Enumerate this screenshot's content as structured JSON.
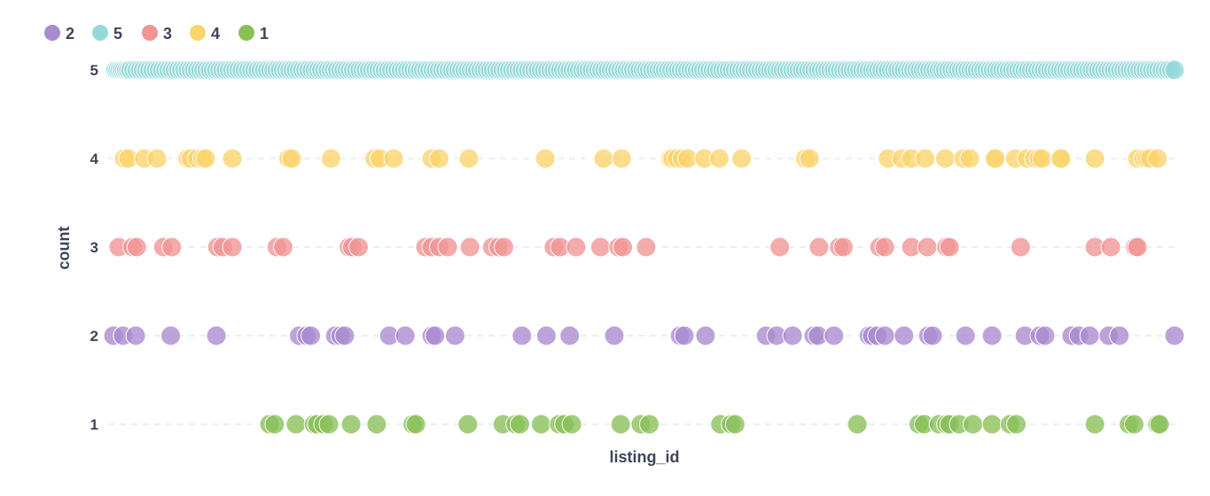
{
  "chart_data": {
    "type": "scatter",
    "xlabel": "listing_id",
    "ylabel": "count",
    "xlim": [
      0,
      1000
    ],
    "ylim": [
      0.5,
      5.5
    ],
    "yticks": [
      1,
      2,
      3,
      4,
      5
    ],
    "grid": "horizontal dashed",
    "legend": "top-left",
    "series": [
      {
        "name": "2",
        "color": "#a98bd0",
        "y": 2,
        "x": [
          0,
          9,
          21,
          54,
          97,
          175,
          182,
          186,
          209,
          214,
          218,
          260,
          275,
          300,
          303,
          322,
          385,
          408,
          430,
          472,
          534,
          538,
          558,
          615,
          625,
          640,
          660,
          664,
          679,
          712,
          715,
          720,
          727,
          745,
          768,
          772,
          803,
          828,
          859,
          873,
          878,
          903,
          910,
          920,
          938,
          948,
          1000
        ]
      },
      {
        "name": "3",
        "color": "#f19494",
        "y": 3,
        "x": [
          5,
          18,
          22,
          47,
          55,
          98,
          103,
          112,
          154,
          160,
          222,
          225,
          231,
          294,
          300,
          307,
          315,
          336,
          357,
          363,
          368,
          415,
          421,
          436,
          459,
          476,
          480,
          502,
          628,
          665,
          684,
          688,
          722,
          727,
          752,
          767,
          785,
          788,
          855,
          925,
          940,
          963,
          965
        ]
      },
      {
        "name": "4",
        "color": "#fbd46b",
        "y": 4,
        "x": [
          10,
          14,
          29,
          41,
          70,
          73,
          79,
          84,
          87,
          112,
          165,
          168,
          205,
          246,
          251,
          264,
          300,
          307,
          335,
          407,
          462,
          479,
          525,
          527,
          531,
          536,
          541,
          557,
          571,
          592,
          652,
          656,
          730,
          743,
          752,
          765,
          784,
          801,
          807,
          830,
          831,
          850,
          861,
          868,
          872,
          875,
          892,
          893,
          925,
          965,
          971,
          974,
          977,
          984
        ]
      },
      {
        "name": "1",
        "color": "#88c057",
        "y": 1,
        "x": [
          147,
          152,
          172,
          189,
          192,
          198,
          203,
          224,
          248,
          282,
          285,
          334,
          367,
          379,
          383,
          403,
          420,
          425,
          432,
          478,
          497,
          505,
          572,
          582,
          586,
          701,
          759,
          764,
          778,
          785,
          788,
          797,
          810,
          828,
          845,
          851,
          925,
          957,
          962,
          984,
          986
        ]
      },
      {
        "name": "5",
        "color": "#95dadb",
        "y": 5,
        "x": [
          2,
          4,
          6,
          8,
          10,
          12,
          14,
          16,
          19,
          22,
          25,
          28,
          31,
          34,
          37,
          40,
          43,
          46,
          49,
          52,
          55,
          58,
          61,
          64,
          67,
          70,
          73,
          76,
          79,
          82,
          85,
          88,
          91,
          94,
          97,
          100,
          103,
          106,
          109,
          112,
          115,
          118,
          121,
          124,
          127,
          130,
          133,
          136,
          139,
          142,
          145,
          148,
          151,
          154,
          157,
          160,
          163,
          166,
          169,
          172,
          175,
          178,
          181,
          184,
          187,
          190,
          193,
          196,
          199,
          202,
          205,
          208,
          211,
          214,
          217,
          220,
          223,
          226,
          229,
          232,
          235,
          238,
          241,
          244,
          247,
          250,
          253,
          256,
          259,
          262,
          265,
          268,
          271,
          274,
          277,
          280,
          283,
          286,
          289,
          292,
          295,
          298,
          301,
          304,
          307,
          310,
          313,
          316,
          319,
          322,
          325,
          328,
          331,
          334,
          337,
          340,
          343,
          346,
          349,
          352,
          355,
          358,
          361,
          364,
          367,
          370,
          373,
          376,
          379,
          382,
          385,
          388,
          391,
          394,
          397,
          400,
          403,
          406,
          409,
          412,
          415,
          418,
          421,
          424,
          427,
          430,
          433,
          436,
          439,
          442,
          445,
          448,
          451,
          454,
          457,
          460,
          463,
          466,
          469,
          472,
          475,
          478,
          481,
          484,
          487,
          490,
          493,
          496,
          499,
          502,
          505,
          508,
          511,
          514,
          517,
          520,
          523,
          526,
          529,
          532,
          535,
          538,
          541,
          544,
          547,
          550,
          553,
          556,
          559,
          562,
          565,
          568,
          571,
          574,
          577,
          580,
          583,
          586,
          589,
          592,
          595,
          598,
          601,
          604,
          607,
          610,
          613,
          616,
          619,
          622,
          625,
          628,
          631,
          634,
          637,
          640,
          643,
          646,
          649,
          652,
          655,
          658,
          661,
          664,
          667,
          670,
          673,
          676,
          679,
          682,
          685,
          688,
          691,
          694,
          697,
          700,
          703,
          706,
          709,
          712,
          715,
          718,
          721,
          724,
          727,
          730,
          733,
          736,
          739,
          742,
          745,
          748,
          751,
          754,
          757,
          760,
          763,
          766,
          769,
          772,
          775,
          778,
          781,
          784,
          787,
          790,
          793,
          796,
          799,
          802,
          805,
          808,
          811,
          814,
          817,
          820,
          823,
          826,
          829,
          832,
          835,
          838,
          841,
          844,
          847,
          850,
          853,
          856,
          859,
          862,
          865,
          868,
          871,
          874,
          877,
          880,
          883,
          886,
          889,
          892,
          895,
          898,
          901,
          904,
          907,
          910,
          913,
          916,
          919,
          922,
          925,
          928,
          931,
          934,
          937,
          940,
          943,
          946,
          949,
          952,
          955,
          958,
          961,
          964,
          967,
          970,
          973,
          976,
          979,
          982,
          985,
          988,
          991,
          994,
          997,
          1000
        ]
      }
    ]
  }
}
